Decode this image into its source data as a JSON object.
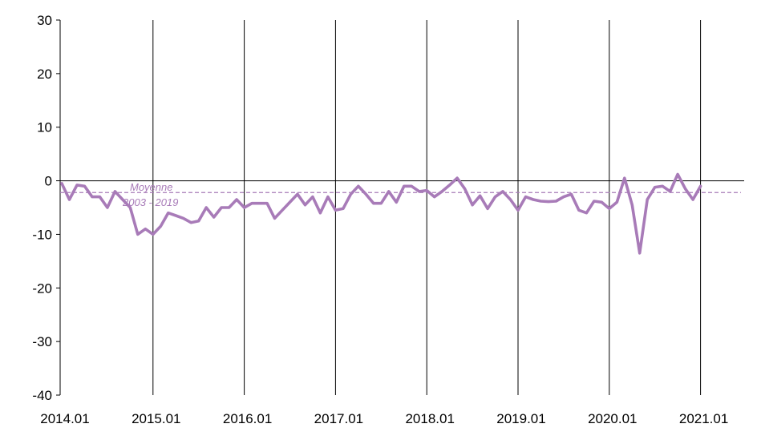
{
  "chart_data": {
    "type": "line",
    "ylim": [
      -40,
      30
    ],
    "yticks": [
      30,
      20,
      10,
      0,
      -10,
      -20,
      -30,
      -40
    ],
    "xticks": [
      "2014.01",
      "2015.01",
      "2016.01",
      "2017.01",
      "2018.01",
      "2019.01",
      "2020.01",
      "2021.01"
    ],
    "x_start": "2014.01",
    "grid": "vertical lines at each year",
    "series": [
      {
        "color": "#a87bb8",
        "values": [
          -0.5,
          -3.5,
          -0.8,
          -1.0,
          -3.0,
          -3.0,
          -5.0,
          -2.0,
          -3.5,
          -5.0,
          -10.0,
          -9.0,
          -10.0,
          -8.5,
          -6.0,
          -6.5,
          -7.0,
          -7.8,
          -7.5,
          -5.0,
          -6.8,
          -5.0,
          -5.0,
          -3.5,
          -5.0,
          -4.2,
          -4.2,
          -4.2,
          -7.0,
          -5.5,
          -4.0,
          -2.5,
          -4.5,
          -3.0,
          -6.0,
          -3.0,
          -5.5,
          -5.2,
          -2.5,
          -1.0,
          -2.5,
          -4.2,
          -4.2,
          -2.0,
          -4.0,
          -1.0,
          -1.0,
          -2.0,
          -1.8,
          -3.0,
          -2.0,
          -0.8,
          0.5,
          -1.5,
          -4.5,
          -2.8,
          -5.2,
          -3.0,
          -2.0,
          -3.5,
          -5.5,
          -3.0,
          -3.5,
          -3.8,
          -3.9,
          -3.8,
          -3.0,
          -2.5,
          -5.5,
          -6.0,
          -3.8,
          -4.0,
          -5.2,
          -4.0,
          0.5,
          -4.5,
          -13.5,
          -3.5,
          -1.2,
          -1.0,
          -2.0,
          1.2,
          -1.5,
          -3.5,
          -1.0
        ]
      }
    ],
    "reference_line": {
      "value": -2.2,
      "label_line1": "Moyenne",
      "label_line2": "2003 - 2019",
      "color": "#a87bb8"
    }
  }
}
